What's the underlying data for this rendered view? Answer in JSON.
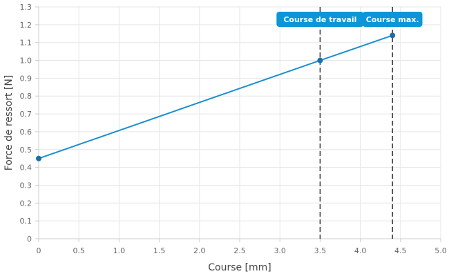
{
  "chart_data": {
    "type": "line",
    "xlabel": "Course [mm]",
    "ylabel": "Force de ressort [N]",
    "xlim": [
      0,
      5
    ],
    "ylim": [
      0,
      1.3
    ],
    "xticks": [
      "0",
      "0.5",
      "1.0",
      "1.5",
      "2.0",
      "2.5",
      "3.0",
      "3.5",
      "4.0",
      "4.5",
      "5.0"
    ],
    "yticks": [
      "0",
      "0.1",
      "0.2",
      "0.3",
      "0.4",
      "0.5",
      "0.6",
      "0.7",
      "0.8",
      "0.9",
      "1.0",
      "1.1",
      "1.2",
      "1.3"
    ],
    "grid": true,
    "line_color": "#1a8fd0",
    "series": [
      {
        "points": [
          {
            "x": 0,
            "y": 0.45
          },
          {
            "x": 3.5,
            "y": 1.0
          },
          {
            "x": 4.4,
            "y": 1.14
          }
        ]
      }
    ],
    "annotations": [
      {
        "x": 3.5,
        "label": "Course de travail",
        "color": "#0a96d8"
      },
      {
        "x": 4.4,
        "label": "Course max.",
        "color": "#0a96d8"
      }
    ]
  }
}
